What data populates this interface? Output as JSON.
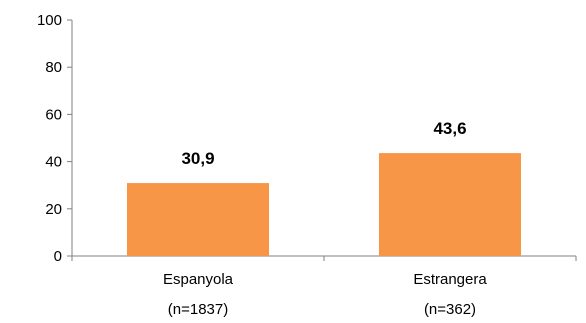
{
  "chart_data": {
    "type": "bar",
    "categories": [
      {
        "name": "Espanyola",
        "n": "(n=1837)"
      },
      {
        "name": "Estrangera",
        "n": "(n=362)"
      }
    ],
    "values": [
      30.9,
      43.6
    ],
    "data_labels": [
      "30,9",
      "43,6"
    ],
    "title": "",
    "xlabel": "",
    "ylabel": "",
    "ylim": [
      0,
      100
    ],
    "yticks": [
      0,
      20,
      40,
      60,
      80,
      100
    ],
    "grid": false,
    "legend": "none",
    "bar_color": "#F79646"
  }
}
